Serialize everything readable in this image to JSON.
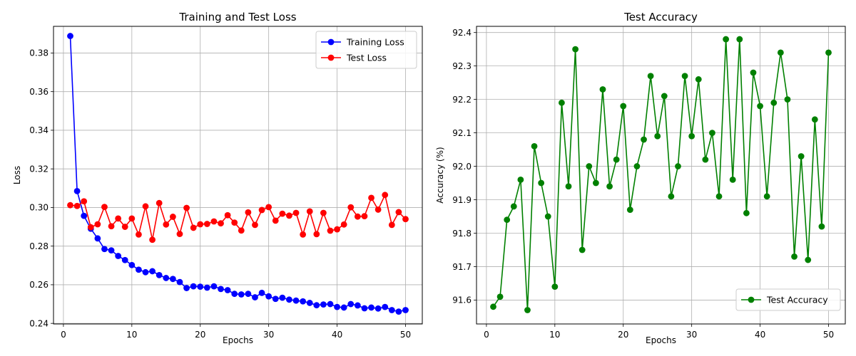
{
  "chart_data": [
    {
      "type": "line",
      "title": "Training and Test Loss",
      "xlabel": "Epochs",
      "ylabel": "Loss",
      "xlim": [
        -1.45,
        52.45
      ],
      "ylim": [
        0.2397,
        0.3938
      ],
      "xticks": [
        0,
        10,
        20,
        30,
        40,
        50
      ],
      "xtick_labels": [
        "0",
        "10",
        "20",
        "30",
        "40",
        "50"
      ],
      "yticks": [
        0.24,
        0.26,
        0.28,
        0.3,
        0.32,
        0.34,
        0.36,
        0.38
      ],
      "ytick_labels": [
        "0.24",
        "0.26",
        "0.28",
        "0.30",
        "0.32",
        "0.34",
        "0.36",
        "0.38"
      ],
      "grid": true,
      "legend": "upper right",
      "x": [
        1,
        2,
        3,
        4,
        5,
        6,
        7,
        8,
        9,
        10,
        11,
        12,
        13,
        14,
        15,
        16,
        17,
        18,
        19,
        20,
        21,
        22,
        23,
        24,
        25,
        26,
        27,
        28,
        29,
        30,
        31,
        32,
        33,
        34,
        35,
        36,
        37,
        38,
        39,
        40,
        41,
        42,
        43,
        44,
        45,
        46,
        47,
        48,
        49,
        50
      ],
      "series": [
        {
          "name": "Training Loss",
          "color": "#0000ff",
          "values": [
            0.3888,
            0.3085,
            0.2957,
            0.289,
            0.284,
            0.2785,
            0.2778,
            0.2749,
            0.2728,
            0.2702,
            0.2678,
            0.2665,
            0.267,
            0.265,
            0.2635,
            0.263,
            0.2614,
            0.2583,
            0.2592,
            0.259,
            0.2585,
            0.2592,
            0.2578,
            0.2572,
            0.2553,
            0.255,
            0.2553,
            0.2535,
            0.2558,
            0.254,
            0.2527,
            0.2533,
            0.2523,
            0.2518,
            0.2514,
            0.2506,
            0.2494,
            0.2498,
            0.25,
            0.2485,
            0.2482,
            0.25,
            0.2493,
            0.2478,
            0.2482,
            0.2477,
            0.2485,
            0.2469,
            0.2461,
            0.2469
          ]
        },
        {
          "name": "Test Loss",
          "color": "#ff0000",
          "values": [
            0.3012,
            0.3008,
            0.3032,
            0.2898,
            0.2913,
            0.3003,
            0.2903,
            0.2943,
            0.29,
            0.2943,
            0.286,
            0.3006,
            0.2833,
            0.3023,
            0.2912,
            0.2952,
            0.2863,
            0.2998,
            0.2895,
            0.2913,
            0.2915,
            0.2928,
            0.2918,
            0.296,
            0.2922,
            0.2881,
            0.2975,
            0.291,
            0.2987,
            0.3002,
            0.2932,
            0.2968,
            0.2958,
            0.2972,
            0.286,
            0.298,
            0.2862,
            0.2972,
            0.288,
            0.2887,
            0.2912,
            0.3001,
            0.2953,
            0.2955,
            0.305,
            0.2989,
            0.3065,
            0.291,
            0.2976,
            0.294
          ]
        }
      ]
    },
    {
      "type": "line",
      "title": "Test Accuracy",
      "xlabel": "Epochs",
      "ylabel": "Accuracy (%)",
      "xlim": [
        -1.45,
        52.45
      ],
      "ylim": [
        91.5285,
        92.4185
      ],
      "xticks": [
        0,
        10,
        20,
        30,
        40,
        50
      ],
      "xtick_labels": [
        "0",
        "10",
        "20",
        "30",
        "40",
        "50"
      ],
      "yticks": [
        91.6,
        91.7,
        91.8,
        91.9,
        92.0,
        92.1,
        92.2,
        92.3,
        92.4
      ],
      "ytick_labels": [
        "91.6",
        "91.7",
        "91.8",
        "91.9",
        "92.0",
        "92.1",
        "92.2",
        "92.3",
        "92.4"
      ],
      "grid": true,
      "legend": "lower right",
      "x": [
        1,
        2,
        3,
        4,
        5,
        6,
        7,
        8,
        9,
        10,
        11,
        12,
        13,
        14,
        15,
        16,
        17,
        18,
        19,
        20,
        21,
        22,
        23,
        24,
        25,
        26,
        27,
        28,
        29,
        30,
        31,
        32,
        33,
        34,
        35,
        36,
        37,
        38,
        39,
        40,
        41,
        42,
        43,
        44,
        45,
        46,
        47,
        48,
        49,
        50
      ],
      "series": [
        {
          "name": "Test Accuracy",
          "color": "#008000",
          "values": [
            91.58,
            91.61,
            91.84,
            91.88,
            91.96,
            91.57,
            92.06,
            91.95,
            91.85,
            91.64,
            92.19,
            91.94,
            92.35,
            91.75,
            92.0,
            91.95,
            92.23,
            91.94,
            92.02,
            92.18,
            91.87,
            92.0,
            92.08,
            92.27,
            92.09,
            92.21,
            91.91,
            92.0,
            92.27,
            92.09,
            92.26,
            92.02,
            92.1,
            91.91,
            92.38,
            91.96,
            92.38,
            91.86,
            92.28,
            92.18,
            91.91,
            92.19,
            92.34,
            92.2,
            91.73,
            92.03,
            91.72,
            92.14,
            91.82,
            92.34
          ]
        }
      ]
    }
  ]
}
